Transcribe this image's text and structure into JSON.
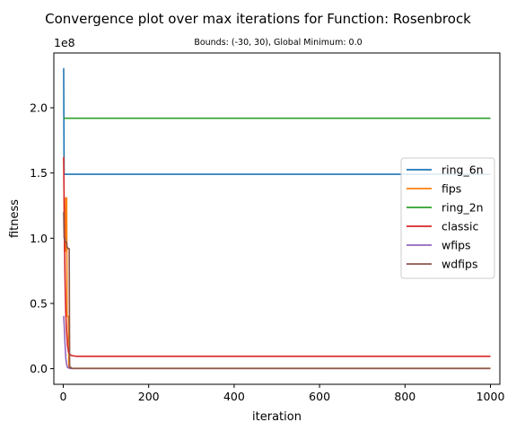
{
  "chart_data": {
    "type": "line",
    "title": "Convergence plot over max iterations for Function: Rosenbrock",
    "subtitle": "Bounds: (-30, 30), Global Minimum: 0.0",
    "xlabel": "iteration",
    "ylabel": "fitness",
    "y_offset_label": "1e8",
    "xlim": [
      -22,
      1022
    ],
    "ylim": [
      -12000000.0,
      242000000.0
    ],
    "x_ticks": [
      0,
      200,
      400,
      600,
      800,
      1000
    ],
    "x_tick_labels": [
      "0",
      "200",
      "400",
      "600",
      "800",
      "1000"
    ],
    "y_ticks": [
      0,
      50000000.0,
      100000000.0,
      150000000.0,
      200000000.0
    ],
    "y_tick_labels": [
      "0.0",
      "0.5",
      "1.0",
      "1.5",
      "2.0"
    ],
    "grid": false,
    "legend_position": "center-right",
    "series": [
      {
        "name": "ring_6n",
        "color": "#1f77b4",
        "x": [
          0,
          1,
          2,
          3,
          1000
        ],
        "y": [
          230000000.0,
          230000000.0,
          149000000.0,
          149000000.0,
          149000000.0
        ]
      },
      {
        "name": "fips",
        "color": "#ff7f0e",
        "x": [
          0,
          2,
          3,
          5,
          6,
          8,
          9,
          12,
          13,
          15,
          1000
        ],
        "y": [
          131000000.0,
          131000000.0,
          90000000.0,
          90000000.0,
          131000000.0,
          131000000.0,
          40000000.0,
          40000000.0,
          1000000.0,
          300000.0,
          300000.0
        ]
      },
      {
        "name": "ring_2n",
        "color": "#2ca02c",
        "x": [
          0,
          1,
          2,
          1000
        ],
        "y": [
          192000000.0,
          192000000.0,
          192000000.0,
          192000000.0
        ]
      },
      {
        "name": "classic",
        "color": "#d62728",
        "x": [
          0,
          1,
          2,
          3,
          4,
          5,
          6,
          8,
          10,
          12,
          15,
          20,
          30,
          1000
        ],
        "y": [
          162000000.0,
          162000000.0,
          130000000.0,
          100000000.0,
          72000000.0,
          55000000.0,
          42000000.0,
          28000000.0,
          18000000.0,
          13000000.0,
          11000000.0,
          10000000.0,
          9500000.0,
          9500000.0
        ]
      },
      {
        "name": "wfips",
        "color": "#9467bd",
        "x": [
          0,
          1,
          2,
          4,
          6,
          8,
          10,
          15,
          1000
        ],
        "y": [
          40000000.0,
          40000000.0,
          35000000.0,
          20000000.0,
          8000000.0,
          3000000.0,
          1000000.0,
          200000.0,
          200000.0
        ]
      },
      {
        "name": "wdfips",
        "color": "#8c564b",
        "x": [
          0,
          1,
          2,
          4,
          5,
          8,
          9,
          10,
          11,
          14,
          15,
          18,
          19,
          1000
        ],
        "y": [
          120000000.0,
          120000000.0,
          100000000.0,
          100000000.0,
          97000000.0,
          97000000.0,
          93000000.0,
          93000000.0,
          92000000.0,
          92000000.0,
          1000000.0,
          1000000.0,
          200000.0,
          200000.0
        ]
      }
    ]
  }
}
